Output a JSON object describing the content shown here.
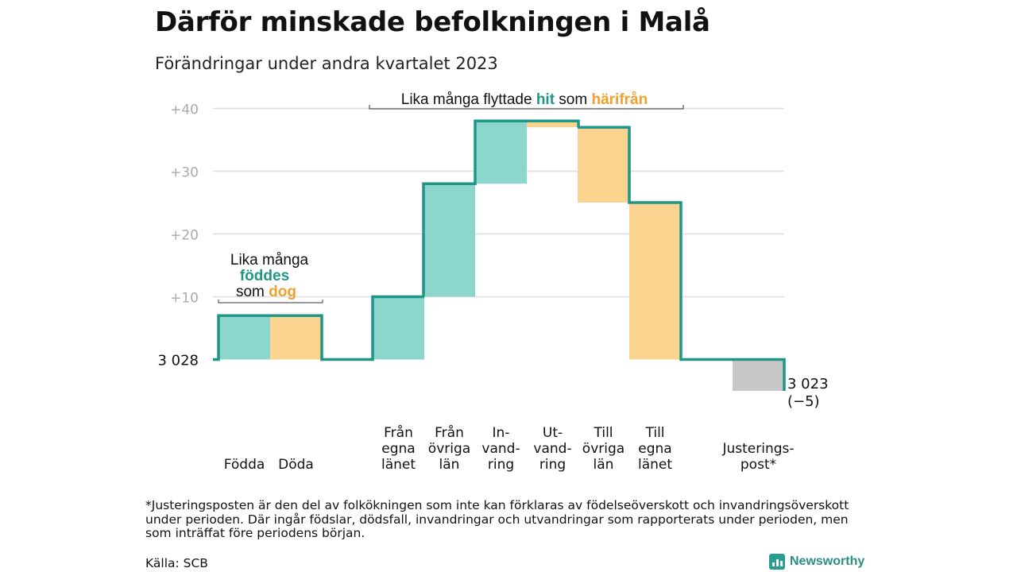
{
  "title": "Därför minskade befolkningen i Malå",
  "subtitle": "Förändringar under andra kvartalet 2023",
  "chart_data": {
    "type": "waterfall",
    "base_label": "3  028",
    "end_label_line1": "3 023",
    "end_label_line2": "(−5)",
    "y_ticks": [
      {
        "value": 10,
        "label": "+10"
      },
      {
        "value": 20,
        "label": "+20"
      },
      {
        "value": 30,
        "label": "+30"
      },
      {
        "value": 40,
        "label": "+40"
      }
    ],
    "ylim": [
      -5,
      40
    ],
    "steps": [
      {
        "category": [
          "Födda"
        ],
        "change": 7,
        "color": "teal"
      },
      {
        "category": [
          "Döda"
        ],
        "change": -7,
        "color": "orange"
      },
      {
        "category": [
          "Från",
          "egna",
          "länet"
        ],
        "change": 10,
        "color": "teal"
      },
      {
        "category": [
          "Från",
          "övriga",
          "län"
        ],
        "change": 18,
        "color": "teal"
      },
      {
        "category": [
          "In-",
          "vand-",
          "ring"
        ],
        "change": 10,
        "color": "teal"
      },
      {
        "category": [
          "Ut-",
          "vand-",
          "ring"
        ],
        "change": -1,
        "color": "orange"
      },
      {
        "category": [
          "Till",
          "övriga",
          "län"
        ],
        "change": -12,
        "color": "orange"
      },
      {
        "category": [
          "Till",
          "egna",
          "länet"
        ],
        "change": -25,
        "color": "orange"
      },
      {
        "category": [
          "Justerings-",
          "post*"
        ],
        "change": -5,
        "color": "gray"
      }
    ],
    "annotations": {
      "born_died": {
        "line1": "Lika många",
        "line2": "föddes",
        "line3_prefix": "som ",
        "line3_highlight": "dog"
      },
      "moved": {
        "prefix": "Lika många flyttade ",
        "hit": "hit",
        "middle": " som ",
        "harifran": "härifrån"
      }
    }
  },
  "colors": {
    "teal_line": "#1f9688",
    "teal_fill": "#8dd6cc",
    "orange_fill": "#fad48e",
    "orange_text": "#f0a02c",
    "gray_fill": "#c8c8c8",
    "grid": "#dddddd",
    "tick_text": "#aaaaaa"
  },
  "footnote": "*Justeringsposten är den del av folkökningen som inte kan förklaras av födelseöverskott och invandringsöverskott under perioden. Där ingår födslar, dödsfall, invandringar och utvandringar som rapporterats under perioden, men som inträffat före periodens början.",
  "source": "Källa: SCB",
  "brand": "Newsworthy"
}
